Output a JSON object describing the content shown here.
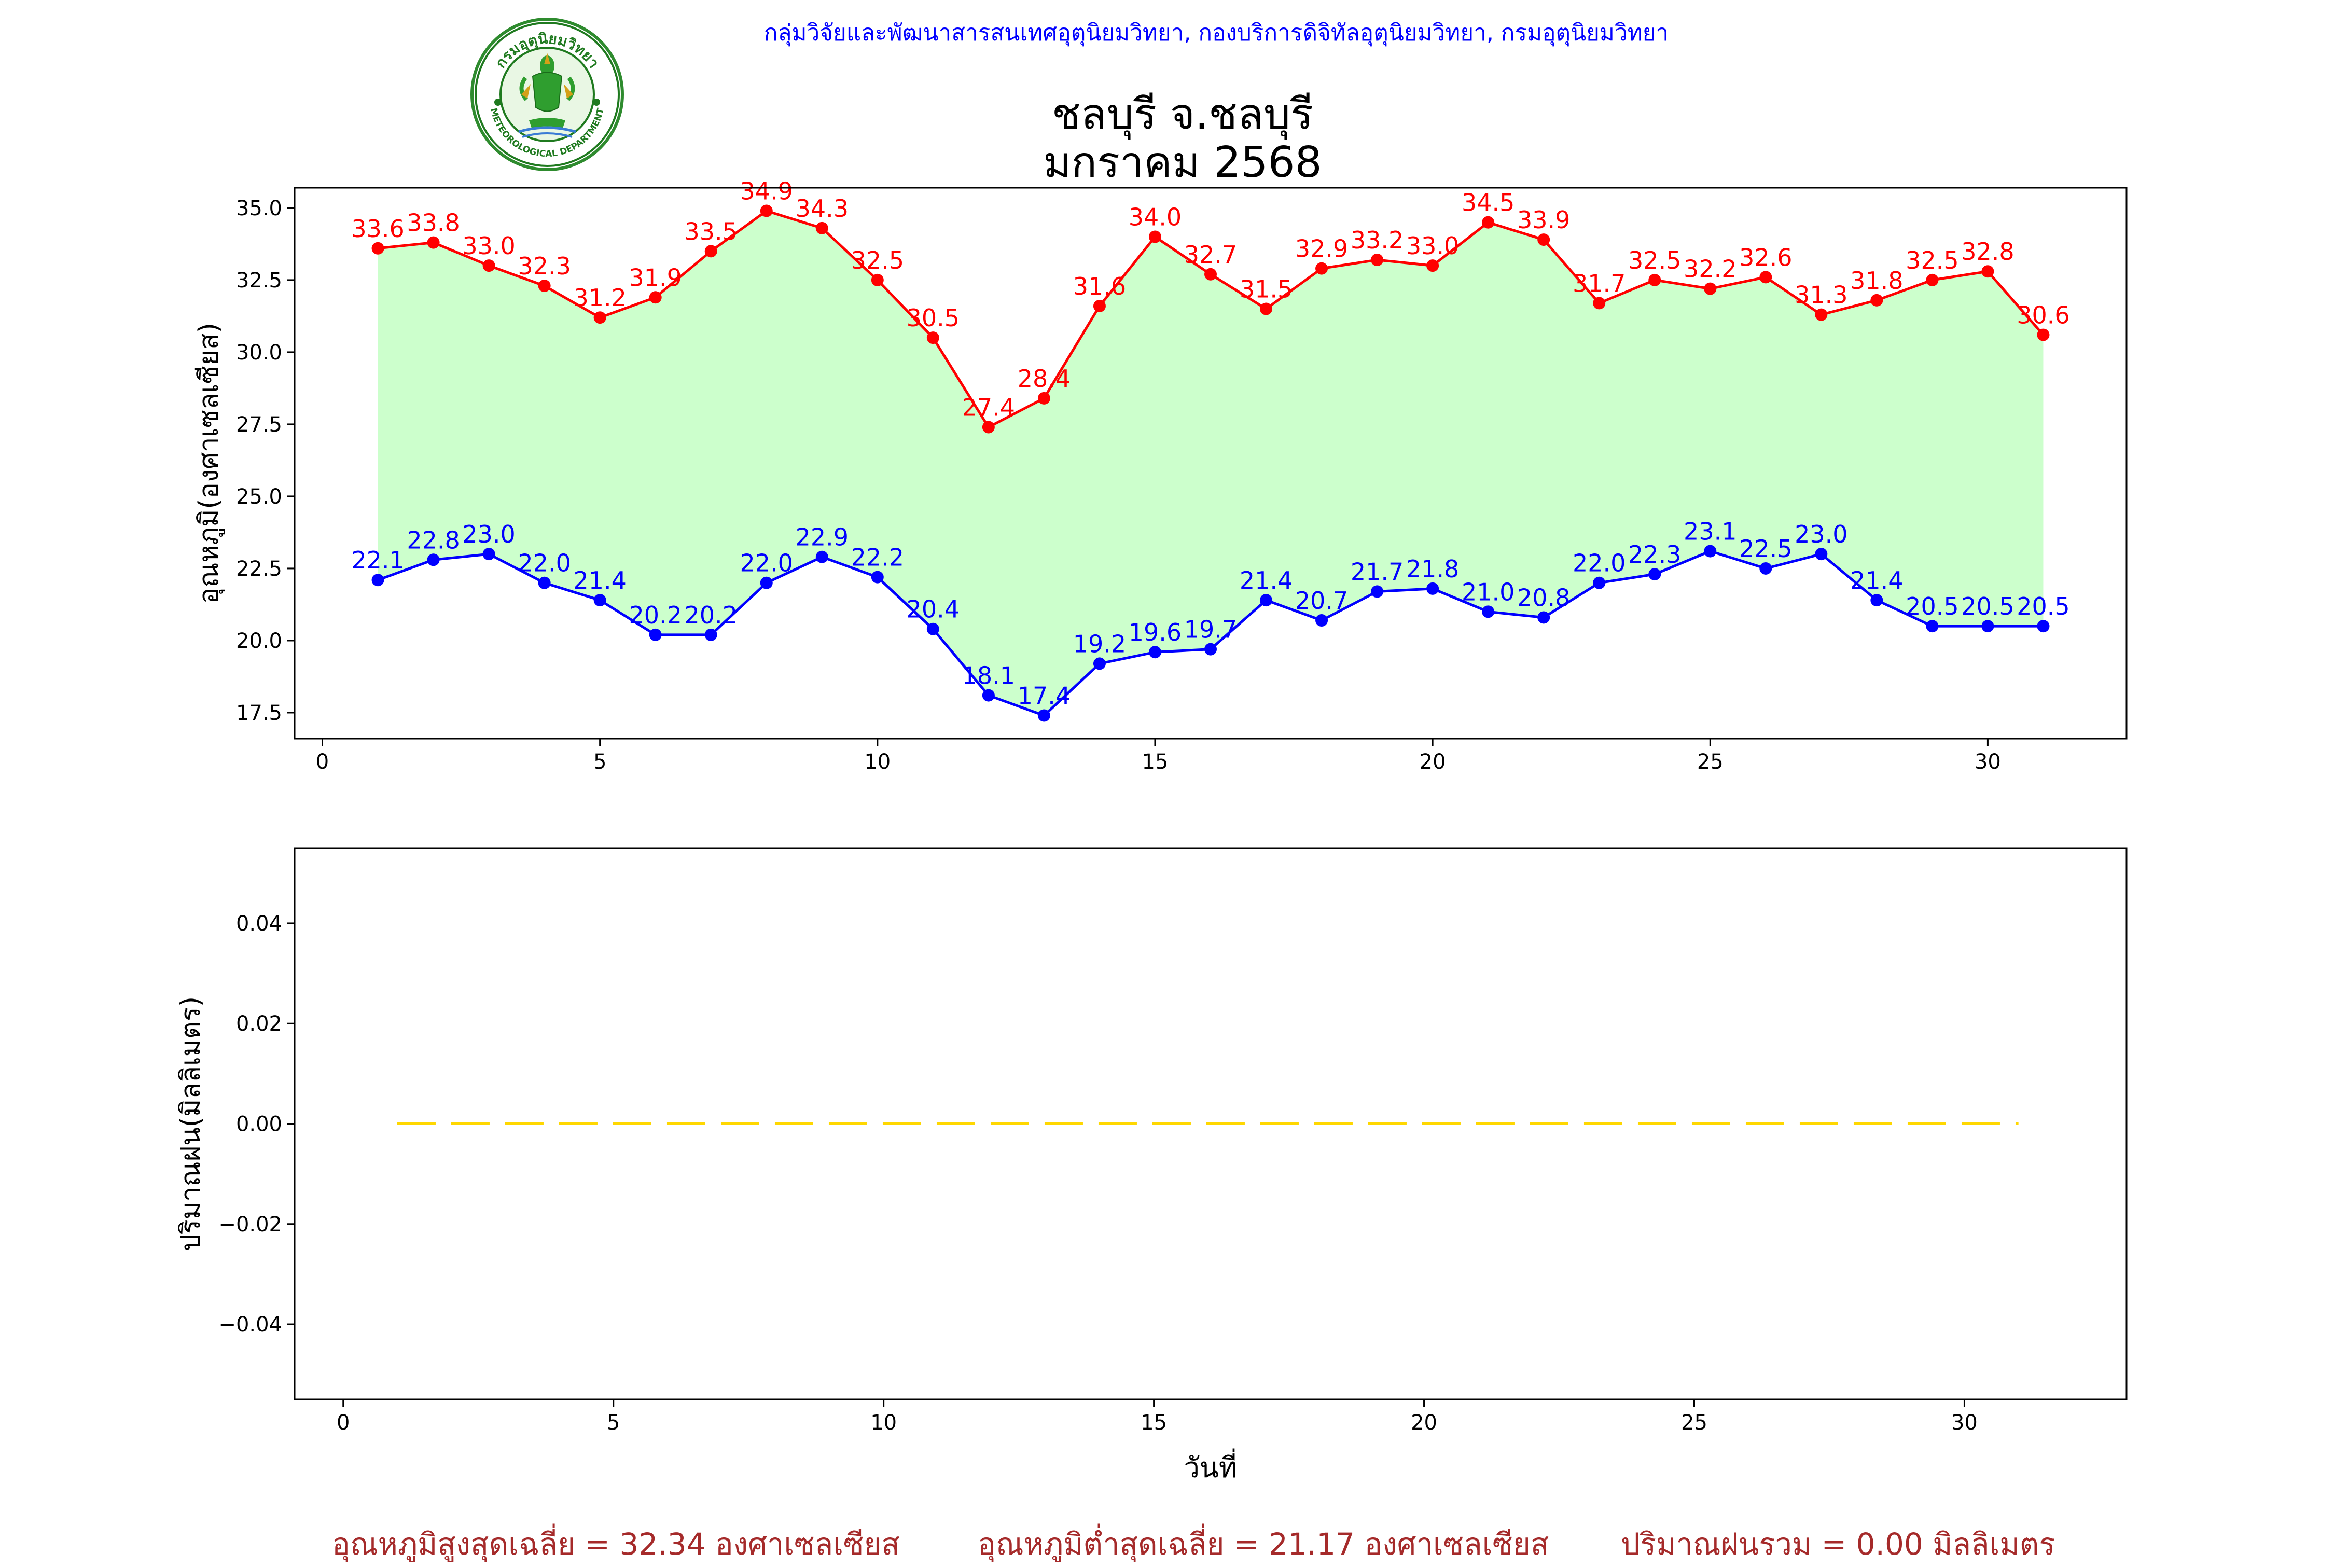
{
  "header": {
    "credit": "กลุ่มวิจัยและพัฒนาสารสนเทศอุตุนิยมวิทยา, กองบริการดิจิทัลอุตุนิยมวิทยา, กรมอุตุนิยมวิทยา",
    "logo_text_top": "กรมอุตุนิยมวิทยา",
    "logo_text_bottom": "METEOROLOGICAL DEPARTMENT"
  },
  "title": {
    "line1": "ชลบุรี จ.ชลบุรี",
    "line2": "มกราคม 2568"
  },
  "colors": {
    "max_line": "#ff0000",
    "min_line": "#0000ff",
    "fill": "#ccffcc",
    "rain_line": "#ffd700",
    "footer": "#a52a2a"
  },
  "chart_data": [
    {
      "type": "line",
      "ylabel": "อุณหภูมิ(องศาเซลเซียส)",
      "xlabel": "",
      "xlim": [
        -0.5,
        32.5
      ],
      "ylim": [
        16.6,
        35.7
      ],
      "xticks": [
        0,
        5,
        10,
        15,
        20,
        25,
        30
      ],
      "yticks": [
        17.5,
        20.0,
        22.5,
        25.0,
        27.5,
        30.0,
        32.5,
        35.0
      ],
      "ytick_labels": [
        "17.5",
        "20.0",
        "22.5",
        "25.0",
        "27.5",
        "30.0",
        "32.5",
        "35.0"
      ],
      "x": [
        1,
        2,
        3,
        4,
        5,
        6,
        7,
        8,
        9,
        10,
        11,
        12,
        13,
        14,
        15,
        16,
        17,
        18,
        19,
        20,
        21,
        22,
        23,
        24,
        25,
        26,
        27,
        28,
        29,
        30,
        31
      ],
      "series": [
        {
          "key": "max",
          "values": [
            33.6,
            33.8,
            33.0,
            32.3,
            31.2,
            31.9,
            33.5,
            34.9,
            34.3,
            32.5,
            30.5,
            27.4,
            28.4,
            31.6,
            34.0,
            32.7,
            31.5,
            32.9,
            33.2,
            33.0,
            34.5,
            33.9,
            31.7,
            32.5,
            32.2,
            32.6,
            31.3,
            31.8,
            32.5,
            32.8,
            30.6
          ],
          "labels": [
            "33.6",
            "33.8",
            "33.0",
            "32.3",
            "31.2",
            "31.9",
            "33.5",
            "34.9",
            "34.3",
            "32.5",
            "30.5",
            "27.4",
            "28.4",
            "31.6",
            "34.0",
            "32.7",
            "31.5",
            "32.9",
            "33.2",
            "33.0",
            "34.5",
            "33.9",
            "31.7",
            "32.5",
            "32.2",
            "32.6",
            "31.3",
            "31.8",
            "32.5",
            "32.8",
            "30.6"
          ]
        },
        {
          "key": "min",
          "values": [
            22.1,
            22.8,
            23.0,
            22.0,
            21.4,
            20.2,
            20.2,
            22.0,
            22.9,
            22.2,
            20.4,
            18.1,
            17.4,
            19.2,
            19.6,
            19.7,
            21.4,
            20.7,
            21.7,
            21.8,
            21.0,
            20.8,
            22.0,
            22.3,
            23.1,
            22.5,
            23.0,
            21.4,
            20.5,
            20.5,
            20.5
          ],
          "labels": [
            "22.1",
            "22.8",
            "23.0",
            "22.0",
            "21.4",
            "20.2",
            "20.2",
            "22.0",
            "22.9",
            "22.2",
            "20.4",
            "18.1",
            "17.4",
            "19.2",
            "19.6",
            "19.7",
            "21.4",
            "20.7",
            "21.7",
            "21.8",
            "21.0",
            "20.8",
            "22.0",
            "22.3",
            "23.1",
            "22.5",
            "23.0",
            "21.4",
            "20.5",
            "20.5",
            "20.5"
          ]
        }
      ],
      "grid": false
    },
    {
      "type": "line",
      "ylabel": "ปริมาณฝน(มิลลิเมตร)",
      "xlabel": "วันที่",
      "xlim": [
        -0.9,
        33.0
      ],
      "ylim": [
        -0.055,
        0.055
      ],
      "xticks": [
        0,
        5,
        10,
        15,
        20,
        25,
        30
      ],
      "yticks": [
        -0.04,
        -0.02,
        0.0,
        0.02,
        0.04
      ],
      "ytick_labels": [
        "−0.04",
        "−0.02",
        "0.00",
        "0.02",
        "0.04"
      ],
      "x": [
        1,
        2,
        3,
        4,
        5,
        6,
        7,
        8,
        9,
        10,
        11,
        12,
        13,
        14,
        15,
        16,
        17,
        18,
        19,
        20,
        21,
        22,
        23,
        24,
        25,
        26,
        27,
        28,
        29,
        30,
        31
      ],
      "series": [
        {
          "key": "rain",
          "values": [
            0,
            0,
            0,
            0,
            0,
            0,
            0,
            0,
            0,
            0,
            0,
            0,
            0,
            0,
            0,
            0,
            0,
            0,
            0,
            0,
            0,
            0,
            0,
            0,
            0,
            0,
            0,
            0,
            0,
            0,
            0
          ]
        }
      ],
      "line_style": "dashed",
      "grid": false
    }
  ],
  "footer": {
    "avg_max": "อุณหภูมิสูงสุดเฉลี่ย = 32.34 องศาเซลเซียส",
    "avg_min": "อุณหภูมิต่ำสุดเฉลี่ย = 21.17 องศาเซลเซียส",
    "rain_total": "ปริมาณฝนรวม = 0.00 มิลลิเมตร"
  }
}
